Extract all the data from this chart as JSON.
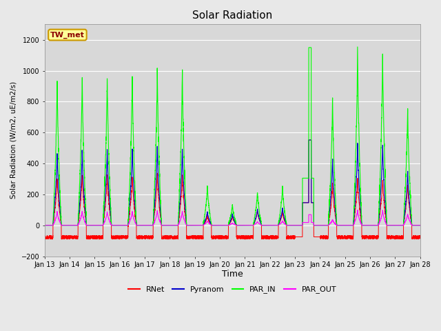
{
  "title": "Solar Radiation",
  "ylabel": "Solar Radiation (W/m2, uE/m2/s)",
  "xlabel": "Time",
  "ylim": [
    -200,
    1300
  ],
  "yticks": [
    -200,
    0,
    200,
    400,
    600,
    800,
    1000,
    1200
  ],
  "n_days": 15,
  "xtick_labels": [
    "Jan 13",
    "Jan 14",
    "Jan 15",
    "Jan 16",
    "Jan 17",
    "Jan 18",
    "Jan 19",
    "Jan 20",
    "Jan 21",
    "Jan 22",
    "Jan 23",
    "Jan 24",
    "Jan 25",
    "Jan 26",
    "Jan 27",
    "Jan 28"
  ],
  "annotation_text": "TW_met",
  "colors": {
    "RNet": "#ff0000",
    "Pyranom": "#0000cc",
    "PAR_IN": "#00ff00",
    "PAR_OUT": "#ff00ff"
  },
  "fig_bg": "#e8e8e8",
  "ax_bg": "#d8d8d8",
  "legend_entries": [
    "RNet",
    "Pyranom",
    "PAR_IN",
    "PAR_OUT"
  ]
}
